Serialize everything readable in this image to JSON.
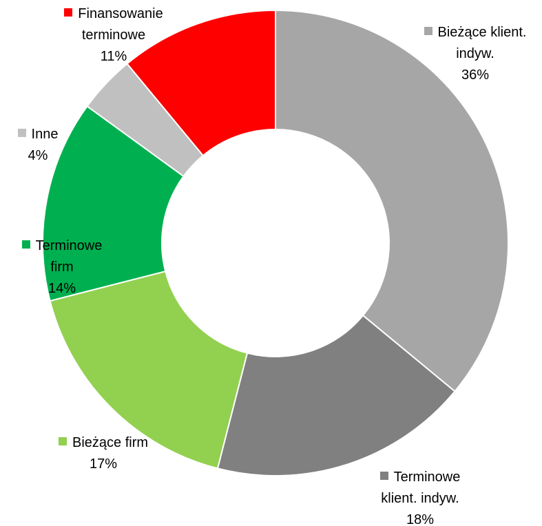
{
  "chart_data": {
    "type": "donut",
    "categories": [
      "Bieżące klient. indyw.",
      "Terminowe klient. indyw.",
      "Bieżące firm",
      "Terminowe firm",
      "Inne",
      "Finansowanie terminowe"
    ],
    "values": [
      36,
      18,
      17,
      14,
      4,
      11
    ],
    "value_labels": [
      "36%",
      "18%",
      "17%",
      "14%",
      "4%",
      "11%"
    ],
    "colors": [
      "#a6a6a6",
      "#808080",
      "#92d050",
      "#00b050",
      "#c0c0c0",
      "#ff0000"
    ]
  }
}
